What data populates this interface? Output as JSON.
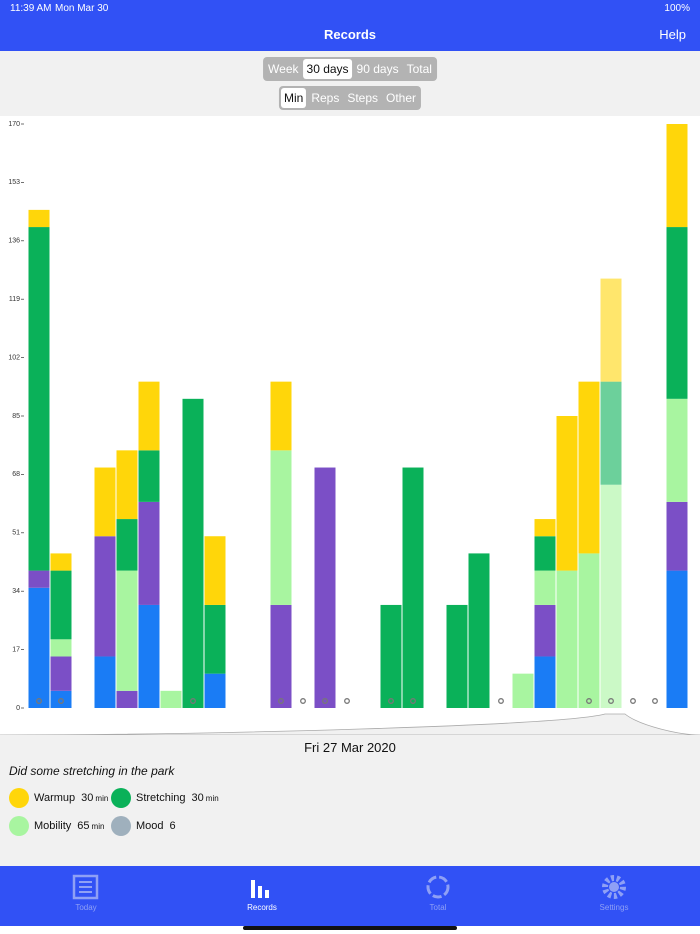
{
  "status": {
    "time": "11:39 AM",
    "date": "Mon Mar 30",
    "battery": "100%"
  },
  "nav": {
    "title": "Records",
    "help": "Help"
  },
  "period_tabs": [
    "Week",
    "30 days",
    "90 days",
    "Total"
  ],
  "period_selected": 1,
  "metric_tabs": [
    "Min",
    "Reps",
    "Steps",
    "Other"
  ],
  "metric_selected": 0,
  "chart_data": {
    "type": "bar",
    "stacked": true,
    "categories": [
      null,
      null,
      null,
      null,
      null,
      null,
      null,
      null,
      null,
      null,
      null,
      null,
      null,
      null,
      null,
      null,
      null,
      null,
      null,
      null,
      null,
      null,
      null,
      null,
      null,
      null,
      null,
      null,
      null,
      null
    ],
    "series": [
      {
        "color": "#1a7cf5",
        "values": [
          35,
          5,
          null,
          15,
          null,
          30,
          null,
          null,
          10,
          null,
          null,
          null,
          null,
          null,
          null,
          null,
          null,
          null,
          null,
          null,
          null,
          null,
          null,
          15,
          null,
          null,
          null,
          null,
          null,
          40
        ]
      },
      {
        "color": "#7b4fc6",
        "values": [
          5,
          10,
          null,
          35,
          5,
          30,
          null,
          null,
          null,
          null,
          null,
          30,
          null,
          70,
          null,
          null,
          null,
          null,
          null,
          null,
          null,
          null,
          null,
          15,
          null,
          null,
          null,
          null,
          null,
          20
        ]
      },
      {
        "color": "#a8f5a0",
        "values": [
          null,
          5,
          null,
          null,
          35,
          null,
          5,
          null,
          null,
          null,
          null,
          45,
          null,
          null,
          null,
          null,
          null,
          null,
          null,
          null,
          null,
          null,
          10,
          10,
          40,
          45,
          65,
          null,
          null,
          30
        ]
      },
      {
        "color": "#0ab159",
        "values": [
          100,
          20,
          null,
          null,
          15,
          15,
          null,
          90,
          20,
          null,
          null,
          null,
          null,
          null,
          null,
          null,
          30,
          70,
          null,
          30,
          45,
          null,
          null,
          10,
          null,
          null,
          30,
          null,
          null,
          50
        ]
      },
      {
        "color": "#ffd60a",
        "values": [
          5,
          5,
          null,
          20,
          20,
          20,
          null,
          null,
          20,
          null,
          null,
          20,
          null,
          null,
          null,
          null,
          null,
          null,
          null,
          null,
          null,
          null,
          null,
          5,
          45,
          50,
          30,
          null,
          null,
          30
        ]
      }
    ],
    "mood_logged": [
      true,
      true,
      false,
      false,
      false,
      false,
      false,
      true,
      false,
      false,
      false,
      true,
      true,
      true,
      true,
      false,
      true,
      true,
      false,
      false,
      false,
      true,
      false,
      false,
      false,
      true,
      true,
      true,
      true,
      false
    ],
    "selected_index": 26,
    "ylim": [
      0,
      170
    ],
    "yticks": [
      0,
      17,
      34,
      51,
      68,
      85,
      102,
      119,
      136,
      153,
      170
    ]
  },
  "detail": {
    "date": "Fri 27 Mar 2020",
    "note": "Did some stretching in the park",
    "legend": [
      {
        "name": "Warmup",
        "value": 30,
        "unit": "min",
        "color": "#ffd60a"
      },
      {
        "name": "Stretching",
        "value": 30,
        "unit": "min",
        "color": "#0ab159"
      },
      {
        "name": "Mobility",
        "value": 65,
        "unit": "min",
        "color": "#a8f5a0"
      },
      {
        "name": "Mood",
        "value": 6,
        "color": "#9fb0bd"
      }
    ]
  },
  "tabs": [
    "Today",
    "Records",
    "Total",
    "Settings"
  ],
  "tab_selected": 1
}
